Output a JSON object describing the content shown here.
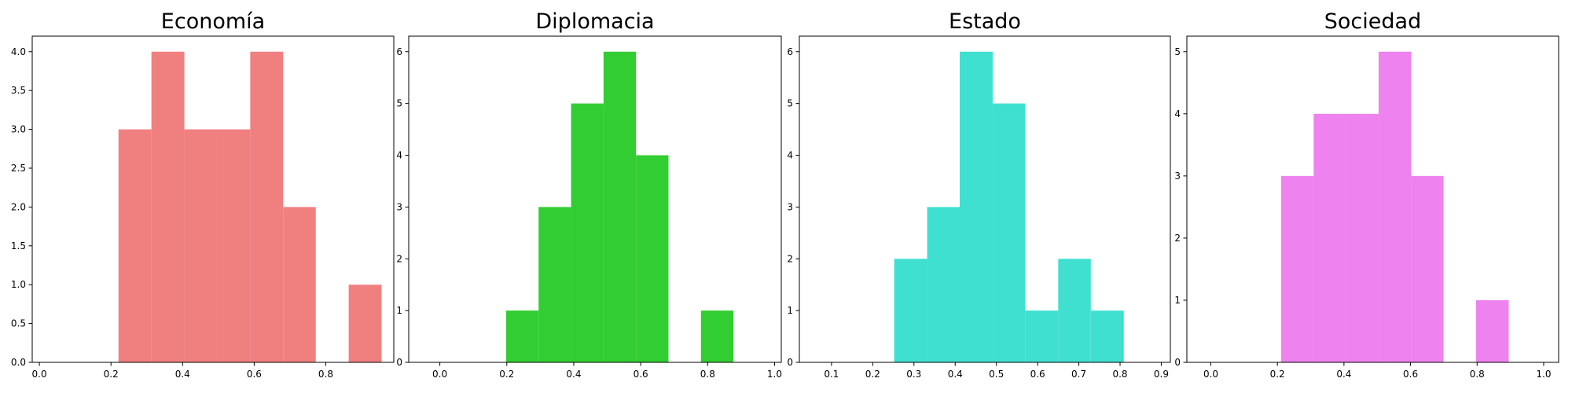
{
  "chart_data": [
    {
      "type": "histogram",
      "title": "Economía",
      "color": "#f08080",
      "bins": [
        0.221,
        0.313,
        0.405,
        0.497,
        0.589,
        0.681,
        0.772,
        0.864,
        0.956
      ],
      "values": [
        3,
        4,
        3,
        3,
        4,
        2,
        0,
        1
      ],
      "xlim": [
        -0.02,
        0.99
      ],
      "xticks": [
        {
          "value": 0,
          "label": "0.0"
        },
        0.2,
        0.4,
        0.6,
        0.8
      ],
      "ylim": [
        0,
        4.2
      ],
      "yticks": [
        {
          "value": 0,
          "label": "0.0"
        },
        0.5,
        {
          "value": 1,
          "label": "1.0"
        },
        1.5,
        {
          "value": 2,
          "label": "2.0"
        },
        2.5,
        {
          "value": 3,
          "label": "3.0"
        },
        3.5,
        {
          "value": 4,
          "label": "4.0"
        }
      ]
    },
    {
      "type": "histogram",
      "title": "Diplomacia",
      "color": "#32cd32",
      "bins": [
        0.198,
        0.295,
        0.392,
        0.489,
        0.586,
        0.683,
        0.78,
        0.877
      ],
      "values": [
        1,
        3,
        5,
        6,
        4,
        0,
        1
      ],
      "xlim": [
        -0.093,
        1.02
      ],
      "xticks": [
        {
          "value": 0,
          "label": "0.0"
        },
        0.2,
        0.4,
        0.6,
        0.8,
        {
          "value": 1,
          "label": "1.0"
        }
      ],
      "ylim": [
        0,
        6.3
      ],
      "yticks": [
        0,
        1,
        2,
        3,
        4,
        5,
        6
      ]
    },
    {
      "type": "histogram",
      "title": "Estado",
      "color": "#40e0d0",
      "bins": [
        0.252,
        0.332,
        0.411,
        0.491,
        0.57,
        0.65,
        0.729,
        0.809
      ],
      "values": [
        2,
        3,
        6,
        5,
        1,
        2,
        1
      ],
      "xlim": [
        0.022,
        0.922
      ],
      "xticks": [
        0.1,
        0.2,
        0.3,
        0.4,
        0.5,
        0.6,
        0.7,
        0.8,
        0.9
      ],
      "ylim": [
        0,
        6.3
      ],
      "yticks": [
        0,
        1,
        2,
        3,
        4,
        5,
        6
      ]
    },
    {
      "type": "histogram",
      "title": "Sociedad",
      "color": "#ee82ee",
      "bins": [
        0.211,
        0.309,
        0.406,
        0.504,
        0.602,
        0.699,
        0.797,
        0.895
      ],
      "values": [
        3,
        4,
        4,
        5,
        3,
        0,
        1
      ],
      "xlim": [
        -0.072,
        1.045
      ],
      "xticks": [
        {
          "value": 0,
          "label": "0.0"
        },
        0.2,
        0.4,
        0.6,
        0.8,
        {
          "value": 1,
          "label": "1.0"
        }
      ],
      "ylim": [
        0,
        5.25
      ],
      "yticks": [
        0,
        1,
        2,
        3,
        4,
        5
      ]
    }
  ]
}
